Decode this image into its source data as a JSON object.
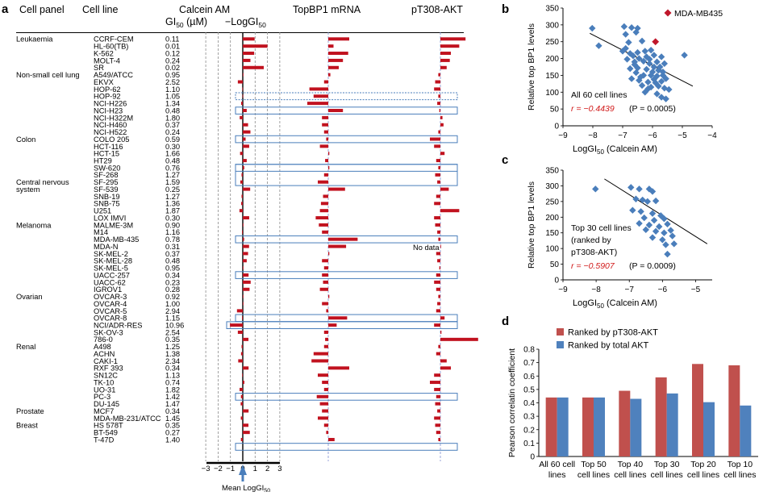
{
  "panel_a": {
    "letter": "a",
    "headers": {
      "cell_panel": "Cell panel",
      "cell_line": "Cell line",
      "calcein": "Calcein AM",
      "gi50_unit": "GI50 (µM)",
      "neglog": "−LogGI50",
      "topbp1": "TopBP1 mRNA",
      "akt": "pT308-AKT"
    },
    "panels": [
      {
        "name": "Leukaemia",
        "start": 0
      },
      {
        "name": "Non-small cell lung",
        "start": 5
      },
      {
        "name": "Colon",
        "start": 14
      },
      {
        "name": "Central nervous",
        "name2": "system",
        "start": 20
      },
      {
        "name": "Melanoma",
        "start": 26
      },
      {
        "name": "Ovarian",
        "start": 36
      },
      {
        "name": "Renal",
        "start": 43
      },
      {
        "name": "Prostate",
        "start": 52
      },
      {
        "name": "Breast",
        "start": 54
      }
    ],
    "rows": [
      {
        "line": "CCRF-CEM",
        "gi50": "0.11",
        "neg": 0.96,
        "topbp1": 1.0,
        "akt": 1.2
      },
      {
        "line": "HL-60(TB)",
        "gi50": "0.01",
        "neg": 2.0,
        "topbp1": 0.25,
        "akt": 0.9
      },
      {
        "line": "K-562",
        "gi50": "0.12",
        "neg": 0.92,
        "topbp1": 0.95,
        "akt": 0.5
      },
      {
        "line": "MOLT-4",
        "gi50": "0.24",
        "neg": 0.62,
        "topbp1": 0.7,
        "akt": 0.45
      },
      {
        "line": "SR",
        "gi50": "0.02",
        "neg": 1.7,
        "topbp1": 0.5,
        "akt": 0.3
      },
      {
        "line": "A549/ATCC",
        "gi50": "0.95",
        "neg": 0.02,
        "topbp1": 0.1,
        "akt": -0.1
      },
      {
        "line": "EKVX",
        "gi50": "2.52",
        "neg": -0.4,
        "topbp1": -0.2,
        "akt": -0.25
      },
      {
        "line": "HOP-62",
        "gi50": "1.10",
        "neg": -0.04,
        "topbp1": -0.9,
        "akt": -0.3
      },
      {
        "line": "HOP-92",
        "gi50": "1.05",
        "neg": -0.02,
        "topbp1": -0.7,
        "akt": -0.1
      },
      {
        "line": "NCI-H226",
        "gi50": "1.34",
        "neg": -0.13,
        "topbp1": -1.0,
        "akt": -0.15
      },
      {
        "line": "NCI-H23",
        "gi50": "0.48",
        "neg": 0.32,
        "topbp1": 0.7,
        "akt": -0.05
      },
      {
        "line": "NCI-H322M",
        "gi50": "1.80",
        "neg": -0.25,
        "topbp1": -0.3,
        "akt": 0.1
      },
      {
        "line": "NCI-H460",
        "gi50": "0.37",
        "neg": 0.43,
        "topbp1": -0.3,
        "akt": 0.15
      },
      {
        "line": "NCI-H522",
        "gi50": "0.24",
        "neg": 0.62,
        "topbp1": -0.2,
        "akt": -0.1
      },
      {
        "line": "COLO 205",
        "gi50": "0.59",
        "neg": 0.23,
        "topbp1": -0.1,
        "akt": -0.5
      },
      {
        "line": "HCT-116",
        "gi50": "0.30",
        "neg": 0.52,
        "topbp1": -0.4,
        "akt": -0.3
      },
      {
        "line": "HCT-15",
        "gi50": "1.66",
        "neg": -0.22,
        "topbp1": 0.05,
        "akt": 0.2
      },
      {
        "line": "HT29",
        "gi50": "0.48",
        "neg": 0.32,
        "topbp1": -0.15,
        "akt": -0.2
      },
      {
        "line": "SW-620",
        "gi50": "0.76",
        "neg": 0.12,
        "topbp1": 0.05,
        "akt": -0.1
      },
      {
        "line": "SF-268",
        "gi50": "1.27",
        "neg": -0.1,
        "topbp1": -0.2,
        "akt": -0.25
      },
      {
        "line": "SF-295",
        "gi50": "1.59",
        "neg": -0.2,
        "topbp1": -0.5,
        "akt": -0.15
      },
      {
        "line": "SF-539",
        "gi50": "0.25",
        "neg": 0.6,
        "topbp1": 0.8,
        "akt": 0.4
      },
      {
        "line": "SNB-19",
        "gi50": "1.27",
        "neg": -0.1,
        "topbp1": -0.25,
        "akt": -0.2
      },
      {
        "line": "SNB-75",
        "gi50": "1.36",
        "neg": -0.13,
        "topbp1": -0.35,
        "akt": -0.3
      },
      {
        "line": "U251",
        "gi50": "1.87",
        "neg": -0.27,
        "topbp1": -0.4,
        "akt": 0.9
      },
      {
        "line": "LOX IMVI",
        "gi50": "0.30",
        "neg": 0.52,
        "topbp1": -0.6,
        "akt": -0.3
      },
      {
        "line": "MALME-3M",
        "gi50": "0.90",
        "neg": 0.05,
        "topbp1": -0.45,
        "akt": -0.25
      },
      {
        "line": "M14",
        "gi50": "1.16",
        "neg": -0.06,
        "topbp1": -0.3,
        "akt": -0.15
      },
      {
        "line": "MDA-MB-435",
        "gi50": "0.78",
        "neg": 0.11,
        "topbp1": 1.4,
        "akt": -0.1
      },
      {
        "line": "MDA-N",
        "gi50": "0.31",
        "neg": 0.51,
        "topbp1": 0.85,
        "akt": 0.0,
        "nodata": "No data"
      },
      {
        "line": "SK-MEL-2",
        "gi50": "0.37",
        "neg": 0.43,
        "topbp1": 0.05,
        "akt": -0.2
      },
      {
        "line": "SK-MEL-28",
        "gi50": "0.48",
        "neg": 0.32,
        "topbp1": -0.3,
        "akt": -0.15
      },
      {
        "line": "SK-MEL-5",
        "gi50": "0.95",
        "neg": 0.02,
        "topbp1": -0.2,
        "akt": -0.05
      },
      {
        "line": "UACC-257",
        "gi50": "0.34",
        "neg": 0.47,
        "topbp1": -0.3,
        "akt": -0.2
      },
      {
        "line": "UACC-62",
        "gi50": "0.23",
        "neg": 0.64,
        "topbp1": -0.25,
        "akt": -0.3
      },
      {
        "line": "IGROV1",
        "gi50": "0.28",
        "neg": 0.55,
        "topbp1": -0.4,
        "akt": -0.2
      },
      {
        "line": "OVCAR-3",
        "gi50": "0.92",
        "neg": 0.04,
        "topbp1": 0.05,
        "akt": -0.1
      },
      {
        "line": "OVCAR-4",
        "gi50": "1.00",
        "neg": 0.0,
        "topbp1": -0.3,
        "akt": -0.15
      },
      {
        "line": "OVCAR-5",
        "gi50": "2.94",
        "neg": -0.47,
        "topbp1": -0.1,
        "akt": -0.2
      },
      {
        "line": "OVCAR-8",
        "gi50": "1.15",
        "neg": -0.06,
        "topbp1": 0.9,
        "akt": 0.2
      },
      {
        "line": "NCI/ADR-RES",
        "gi50": "10.96",
        "neg": -1.04,
        "topbp1": 0.4,
        "akt": -0.3
      },
      {
        "line": "SK-OV-3",
        "gi50": "2.54",
        "neg": -0.4,
        "topbp1": -0.2,
        "akt": 0.05
      },
      {
        "line": "786-0",
        "gi50": "0.35",
        "neg": 0.46,
        "topbp1": -0.15,
        "akt": 1.8
      },
      {
        "line": "A498",
        "gi50": "1.25",
        "neg": -0.1,
        "topbp1": -0.2,
        "akt": -0.1
      },
      {
        "line": "ACHN",
        "gi50": "1.38",
        "neg": -0.14,
        "topbp1": -0.7,
        "akt": -0.2
      },
      {
        "line": "CAKI-1",
        "gi50": "2.34",
        "neg": -0.37,
        "topbp1": -0.8,
        "akt": 0.3
      },
      {
        "line": "RXF 393",
        "gi50": "0.34",
        "neg": 0.47,
        "topbp1": 1.0,
        "akt": 0.5
      },
      {
        "line": "SN12C",
        "gi50": "1.13",
        "neg": -0.05,
        "topbp1": -0.5,
        "akt": -0.3
      },
      {
        "line": "TK-10",
        "gi50": "0.74",
        "neg": 0.13,
        "topbp1": -0.3,
        "akt": -0.5
      },
      {
        "line": "UO-31",
        "gi50": "1.82",
        "neg": -0.26,
        "topbp1": -0.2,
        "akt": -0.3
      },
      {
        "line": "PC-3",
        "gi50": "1.42",
        "neg": -0.15,
        "topbp1": -0.55,
        "akt": -0.2
      },
      {
        "line": "DU-145",
        "gi50": "1.47",
        "neg": -0.17,
        "topbp1": -0.4,
        "akt": -0.25
      },
      {
        "line": "MCF7",
        "gi50": "0.34",
        "neg": 0.47,
        "topbp1": -0.3,
        "akt": -0.15
      },
      {
        "line": "MDA-MB-231/ATCC",
        "gi50": "1.45",
        "neg": -0.16,
        "topbp1": -0.5,
        "akt": -0.3
      },
      {
        "line": "HS 578T",
        "gi50": "0.35",
        "neg": 0.46,
        "topbp1": -0.2,
        "akt": -0.25
      },
      {
        "line": "BT-549",
        "gi50": "0.27",
        "neg": 0.57,
        "topbp1": -0.1,
        "akt": -0.2
      },
      {
        "line": "T-47D",
        "gi50": "1.40",
        "neg": -0.15,
        "topbp1": 0.3,
        "akt": -0.1
      }
    ],
    "boxed_rows": [
      10,
      14,
      18,
      19,
      28,
      33,
      39,
      40,
      50,
      57
    ],
    "dashed_box_rows": [
      8
    ],
    "axis_ticks": [
      "−3",
      "−2",
      "−1",
      "0",
      "1",
      "2",
      "3"
    ],
    "axis_label": "Mean LogGI50"
  },
  "chart_data": [
    {
      "panel": "b",
      "type": "scatter",
      "xlabel": "LogGI50 (Calcein AM)",
      "ylabel": "Relative top BP1 levels",
      "xlim": [
        -9,
        -4
      ],
      "ylim": [
        0,
        350
      ],
      "xticks": [
        "−9",
        "−8",
        "−7",
        "−6",
        "−5",
        "−4"
      ],
      "yticks": [
        "0",
        "50",
        "100",
        "150",
        "200",
        "250",
        "300",
        "350"
      ],
      "legend": "MDA-MB435",
      "annotation_line1": "All 60 cell lines",
      "r_text": "r = −0.4439",
      "p_text": "(P = 0.0005)",
      "fit": [
        [
          -8.1,
          275
        ],
        [
          -4.65,
          118
        ]
      ],
      "points": [
        [
          -8.02,
          290
        ],
        [
          -7.8,
          238
        ],
        [
          -6.95,
          295
        ],
        [
          -6.7,
          292
        ],
        [
          -6.5,
          290
        ],
        [
          -6.55,
          278
        ],
        [
          -6.9,
          272
        ],
        [
          -6.35,
          252
        ],
        [
          -6.8,
          248
        ],
        [
          -7.0,
          222
        ],
        [
          -6.75,
          215
        ],
        [
          -6.5,
          218
        ],
        [
          -6.25,
          222
        ],
        [
          -6.05,
          225
        ],
        [
          -6.65,
          208
        ],
        [
          -6.85,
          198
        ],
        [
          -6.45,
          200
        ],
        [
          -6.2,
          205
        ],
        [
          -5.95,
          210
        ],
        [
          -5.7,
          205
        ],
        [
          -4.93,
          210
        ],
        [
          -6.6,
          190
        ],
        [
          -6.3,
          192
        ],
        [
          -6.1,
          185
        ],
        [
          -5.85,
          190
        ],
        [
          -5.6,
          185
        ],
        [
          -6.75,
          170
        ],
        [
          -6.5,
          172
        ],
        [
          -6.2,
          168
        ],
        [
          -5.95,
          175
        ],
        [
          -5.8,
          165
        ],
        [
          -6.55,
          158
        ],
        [
          -6.3,
          150
        ],
        [
          -6.05,
          150
        ],
        [
          -5.85,
          148
        ],
        [
          -5.65,
          150
        ],
        [
          -6.7,
          140
        ],
        [
          -6.45,
          135
        ],
        [
          -6.15,
          130
        ],
        [
          -5.95,
          138
        ],
        [
          -5.7,
          132
        ],
        [
          -5.55,
          140
        ],
        [
          -6.35,
          120
        ],
        [
          -6.05,
          115
        ],
        [
          -5.8,
          118
        ],
        [
          -5.6,
          112
        ],
        [
          -5.45,
          108
        ],
        [
          -6.25,
          100
        ],
        [
          -5.85,
          95
        ],
        [
          -5.7,
          85
        ],
        [
          -5.55,
          80
        ],
        [
          -6.6,
          182
        ],
        [
          -6.0,
          160
        ],
        [
          -5.75,
          175
        ],
        [
          -6.4,
          145
        ],
        [
          -6.15,
          110
        ],
        [
          -5.9,
          128
        ],
        [
          -6.1,
          198
        ],
        [
          -5.65,
          160
        ],
        [
          -6.9,
          230
        ]
      ],
      "highlight": [
        -5.9,
        250
      ]
    },
    {
      "panel": "c",
      "type": "scatter",
      "xlabel": "LogGI50 (Calcein AM)",
      "ylabel": "Relative top BP1 levels",
      "xlim": [
        -9,
        -4.5
      ],
      "ylim": [
        0,
        350
      ],
      "xticks": [
        "−9",
        "−8",
        "−7",
        "−6",
        "−5"
      ],
      "yticks": [
        "0",
        "50",
        "100",
        "150",
        "200",
        "250",
        "300",
        "350"
      ],
      "annotation_lines": [
        "Top 30 cell lines",
        "(ranked by",
        "pT308-AKT)"
      ],
      "r_text": "r = −0.5907",
      "p_text": "(P = 0.0009)",
      "fit": [
        [
          -7.75,
          322
        ],
        [
          -4.65,
          115
        ]
      ],
      "points": [
        [
          -8.02,
          290
        ],
        [
          -6.95,
          295
        ],
        [
          -6.7,
          290
        ],
        [
          -6.4,
          290
        ],
        [
          -6.3,
          282
        ],
        [
          -6.8,
          258
        ],
        [
          -6.6,
          255
        ],
        [
          -6.45,
          250
        ],
        [
          -6.2,
          252
        ],
        [
          -6.9,
          222
        ],
        [
          -6.65,
          218
        ],
        [
          -6.3,
          212
        ],
        [
          -6.05,
          205
        ],
        [
          -6.55,
          198
        ],
        [
          -6.25,
          190
        ],
        [
          -5.95,
          195
        ],
        [
          -6.7,
          180
        ],
        [
          -6.4,
          175
        ],
        [
          -6.1,
          170
        ],
        [
          -5.85,
          178
        ],
        [
          -6.5,
          160
        ],
        [
          -6.2,
          155
        ],
        [
          -5.95,
          150
        ],
        [
          -5.75,
          158
        ],
        [
          -6.3,
          135
        ],
        [
          -6.0,
          128
        ],
        [
          -5.7,
          140
        ],
        [
          -5.9,
          112
        ],
        [
          -5.65,
          115
        ],
        [
          -5.85,
          82
        ]
      ]
    },
    {
      "panel": "d",
      "type": "bar",
      "ylabel": "Pearson correlatin coefficient",
      "ylim": [
        0,
        0.8
      ],
      "yticks": [
        "0",
        "0.1",
        "0.2",
        "0.3",
        "0.4",
        "0.5",
        "0.6",
        "0.7",
        "0.8"
      ],
      "categories": [
        [
          "All 60 cell",
          "lines"
        ],
        [
          "Top 50",
          "cell lines"
        ],
        [
          "Top 40",
          "cell lines"
        ],
        [
          "Top 30",
          "cell lines"
        ],
        [
          "Top 20",
          "cell lines"
        ],
        [
          "Top 10",
          "cell lines"
        ]
      ],
      "series": [
        {
          "name": "Ranked by pT308-AKT",
          "color": "#c0504d",
          "values": [
            0.44,
            0.44,
            0.49,
            0.59,
            0.69,
            0.68
          ]
        },
        {
          "name": "Ranked by total AKT",
          "color": "#4f81bd",
          "values": [
            0.44,
            0.44,
            0.43,
            0.47,
            0.405,
            0.38
          ]
        }
      ]
    }
  ],
  "panel_letters": {
    "b": "b",
    "c": "c",
    "d": "d"
  },
  "colors": {
    "bar_red": "#c1121f",
    "point_blue": "#4a7ebb",
    "highlight_red": "#c0172b",
    "box_blue": "#4a7ebb",
    "r_red": "#d11a1a"
  }
}
